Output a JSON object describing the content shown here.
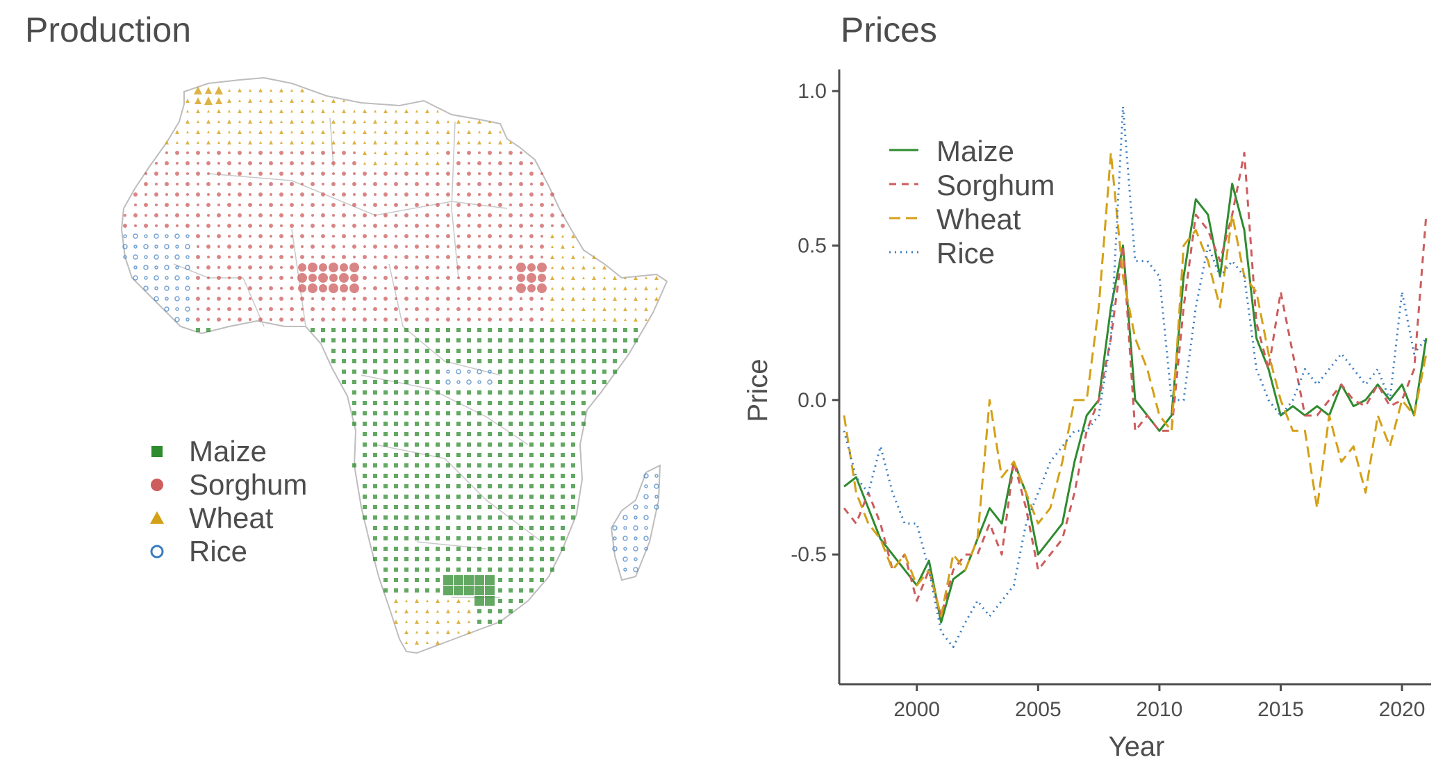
{
  "figure": {
    "left_title": "Production",
    "right_title": "Prices"
  },
  "colors": {
    "Maize": "#2e8b2e",
    "Sorghum": "#cd5c5c",
    "Wheat": "#d4a017",
    "Rice": "#3a7bbf",
    "border": "#bdbdbd",
    "axis": "#4d4d4d"
  },
  "chart_data": [
    {
      "type": "scatter",
      "title": "Production",
      "description_kind": "gridded production map of Africa",
      "legend": {
        "placement": "bottom-left",
        "entries": [
          {
            "name": "Maize",
            "marker": "square"
          },
          {
            "name": "Sorghum",
            "marker": "circle"
          },
          {
            "name": "Wheat",
            "marker": "triangle"
          },
          {
            "name": "Rice",
            "marker": "open-circle"
          }
        ]
      },
      "grid": false
    },
    {
      "type": "line",
      "title": "Prices",
      "xlabel": "Year",
      "ylabel": "Price",
      "xlim": [
        1996.8,
        2021.2
      ],
      "ylim": [
        -0.92,
        1.07
      ],
      "x_ticks": [
        2000,
        2005,
        2010,
        2015,
        2020
      ],
      "y_ticks": [
        -0.5,
        0.0,
        0.5,
        1.0
      ],
      "x_tick_labels": [
        "2000",
        "2005",
        "2010",
        "2015",
        "2020"
      ],
      "y_tick_labels": [
        "-0.5",
        "0.0",
        "0.5",
        "1.0"
      ],
      "grid": false,
      "legend": {
        "placement": "top-left"
      },
      "series": [
        {
          "name": "Maize",
          "style": "solid",
          "x": [
            1997.0,
            1997.5,
            1998.0,
            1998.5,
            1999.0,
            1999.5,
            2000.0,
            2000.5,
            2001.0,
            2001.5,
            2002.0,
            2002.5,
            2003.0,
            2003.5,
            2004.0,
            2004.5,
            2005.0,
            2005.5,
            2006.0,
            2006.5,
            2007.0,
            2007.5,
            2008.0,
            2008.5,
            2009.0,
            2009.5,
            2010.0,
            2010.5,
            2011.0,
            2011.5,
            2012.0,
            2012.5,
            2013.0,
            2013.5,
            2014.0,
            2014.5,
            2015.0,
            2015.5,
            2016.0,
            2016.5,
            2017.0,
            2017.5,
            2018.0,
            2018.5,
            2019.0,
            2019.5,
            2020.0,
            2020.5,
            2021.0
          ],
          "y": [
            -0.28,
            -0.25,
            -0.35,
            -0.45,
            -0.5,
            -0.55,
            -0.6,
            -0.52,
            -0.72,
            -0.58,
            -0.55,
            -0.45,
            -0.35,
            -0.4,
            -0.2,
            -0.3,
            -0.5,
            -0.45,
            -0.4,
            -0.2,
            -0.05,
            0.0,
            0.3,
            0.5,
            0.0,
            -0.05,
            -0.1,
            -0.05,
            0.4,
            0.65,
            0.6,
            0.4,
            0.7,
            0.55,
            0.2,
            0.1,
            -0.05,
            -0.02,
            -0.05,
            -0.02,
            -0.05,
            0.05,
            -0.02,
            0.0,
            0.05,
            0.0,
            0.05,
            -0.05,
            0.2
          ]
        },
        {
          "name": "Sorghum",
          "style": "dashed",
          "x": [
            1997.0,
            1997.5,
            1998.0,
            1998.5,
            1999.0,
            1999.5,
            2000.0,
            2000.5,
            2001.0,
            2001.5,
            2002.0,
            2002.5,
            2003.0,
            2003.5,
            2004.0,
            2004.5,
            2005.0,
            2005.5,
            2006.0,
            2006.5,
            2007.0,
            2007.5,
            2008.0,
            2008.5,
            2009.0,
            2009.5,
            2010.0,
            2010.5,
            2011.0,
            2011.5,
            2012.0,
            2012.5,
            2013.0,
            2013.5,
            2014.0,
            2014.5,
            2015.0,
            2015.5,
            2016.0,
            2016.5,
            2017.0,
            2017.5,
            2018.0,
            2018.5,
            2019.0,
            2019.5,
            2020.0,
            2020.5,
            2021.0
          ],
          "y": [
            -0.35,
            -0.4,
            -0.3,
            -0.4,
            -0.55,
            -0.5,
            -0.65,
            -0.55,
            -0.7,
            -0.55,
            -0.5,
            -0.5,
            -0.4,
            -0.5,
            -0.2,
            -0.35,
            -0.55,
            -0.5,
            -0.45,
            -0.3,
            -0.1,
            0.0,
            0.2,
            0.5,
            -0.1,
            -0.05,
            -0.1,
            -0.1,
            0.3,
            0.6,
            0.55,
            0.45,
            0.6,
            0.8,
            0.25,
            0.1,
            0.35,
            0.15,
            -0.05,
            -0.05,
            0.0,
            0.05,
            0.0,
            -0.02,
            0.05,
            -0.02,
            0.0,
            0.1,
            0.6
          ]
        },
        {
          "name": "Wheat",
          "style": "long-dashed",
          "x": [
            1997.0,
            1997.5,
            1998.0,
            1998.5,
            1999.0,
            1999.5,
            2000.0,
            2000.5,
            2001.0,
            2001.5,
            2002.0,
            2002.5,
            2003.0,
            2003.5,
            2004.0,
            2004.5,
            2005.0,
            2005.5,
            2006.0,
            2006.5,
            2007.0,
            2007.5,
            2008.0,
            2008.5,
            2009.0,
            2009.5,
            2010.0,
            2010.5,
            2011.0,
            2011.5,
            2012.0,
            2012.5,
            2013.0,
            2013.5,
            2014.0,
            2014.5,
            2015.0,
            2015.5,
            2016.0,
            2016.5,
            2017.0,
            2017.5,
            2018.0,
            2018.5,
            2019.0,
            2019.5,
            2020.0,
            2020.5,
            2021.0
          ],
          "y": [
            -0.05,
            -0.3,
            -0.4,
            -0.45,
            -0.55,
            -0.5,
            -0.6,
            -0.55,
            -0.7,
            -0.5,
            -0.55,
            -0.45,
            0.0,
            -0.25,
            -0.2,
            -0.3,
            -0.4,
            -0.35,
            -0.2,
            0.0,
            0.0,
            0.3,
            0.8,
            0.4,
            0.2,
            0.1,
            -0.05,
            -0.1,
            0.5,
            0.55,
            0.45,
            0.3,
            0.6,
            0.4,
            0.35,
            0.15,
            0.0,
            -0.1,
            -0.1,
            -0.35,
            -0.05,
            -0.2,
            -0.15,
            -0.3,
            -0.05,
            -0.15,
            0.0,
            -0.05,
            0.15
          ]
        },
        {
          "name": "Rice",
          "style": "dotted",
          "x": [
            1997.0,
            1997.5,
            1998.0,
            1998.5,
            1999.0,
            1999.5,
            2000.0,
            2000.5,
            2001.0,
            2001.5,
            2002.0,
            2002.5,
            2003.0,
            2003.5,
            2004.0,
            2004.5,
            2005.0,
            2005.5,
            2006.0,
            2006.5,
            2007.0,
            2007.5,
            2008.0,
            2008.5,
            2009.0,
            2009.5,
            2010.0,
            2010.5,
            2011.0,
            2011.5,
            2012.0,
            2012.5,
            2013.0,
            2013.5,
            2014.0,
            2014.5,
            2015.0,
            2015.5,
            2016.0,
            2016.5,
            2017.0,
            2017.5,
            2018.0,
            2018.5,
            2019.0,
            2019.5,
            2020.0,
            2020.5,
            2021.0
          ],
          "y": [
            -0.1,
            -0.25,
            -0.3,
            -0.15,
            -0.3,
            -0.4,
            -0.4,
            -0.55,
            -0.75,
            -0.8,
            -0.72,
            -0.65,
            -0.7,
            -0.65,
            -0.6,
            -0.4,
            -0.3,
            -0.2,
            -0.15,
            -0.1,
            -0.1,
            -0.05,
            0.2,
            0.95,
            0.45,
            0.45,
            0.4,
            0.0,
            0.0,
            0.3,
            0.5,
            0.4,
            0.45,
            0.4,
            0.1,
            0.0,
            -0.05,
            0.0,
            0.1,
            0.05,
            0.1,
            0.15,
            0.1,
            0.05,
            0.1,
            0.0,
            0.35,
            0.15,
            0.2
          ]
        }
      ]
    }
  ]
}
